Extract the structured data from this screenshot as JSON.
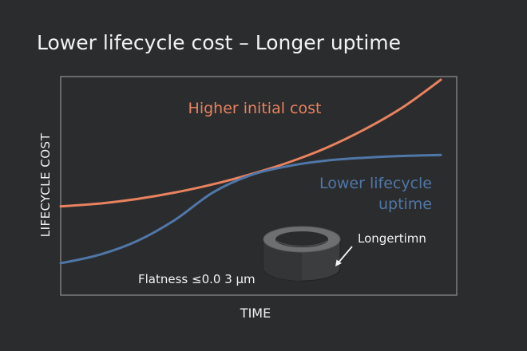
{
  "colors": {
    "background": "#2b2c2d",
    "text": "#f2f2f2",
    "frame": "#8a8a8a",
    "higher_initial_cost": "#e8825f",
    "lower_lifecycle": "#4f77a8",
    "ring_top": "#6e6f70",
    "ring_side": "#3c3d3e",
    "ring_hole": "#2a2b2c"
  },
  "chart_data": {
    "type": "line",
    "title": "Lower lifecycle cost – Longer uptime",
    "xlabel": "TIME",
    "ylabel": "LIFECYCLE COST",
    "grid": false,
    "xlim": [
      0,
      10
    ],
    "ylim": [
      0,
      10
    ],
    "series": [
      {
        "name": "Higher initial cost",
        "label_lines": [
          "Higher initial cost"
        ],
        "color_key": "higher_initial_cost",
        "x": [
          0,
          1,
          2,
          3,
          4,
          5,
          6,
          7,
          8,
          9,
          10
        ],
        "y": [
          3.1,
          3.25,
          3.5,
          3.85,
          4.3,
          4.85,
          5.5,
          6.3,
          7.3,
          8.5,
          10.0
        ]
      },
      {
        "name": "Lower lifecycle uptime",
        "label_lines": [
          "Lower lifecycle",
          "uptime"
        ],
        "color_key": "lower_lifecycle",
        "x": [
          0,
          1,
          2,
          3,
          4,
          5,
          6,
          7,
          8,
          9,
          10
        ],
        "y": [
          0.0,
          0.45,
          1.2,
          2.35,
          3.85,
          4.8,
          5.3,
          5.6,
          5.75,
          5.85,
          5.9
        ]
      }
    ],
    "annotations": [
      {
        "text": "Flatness ≤0.0 3 μm"
      },
      {
        "text": "Longertimn"
      }
    ]
  }
}
